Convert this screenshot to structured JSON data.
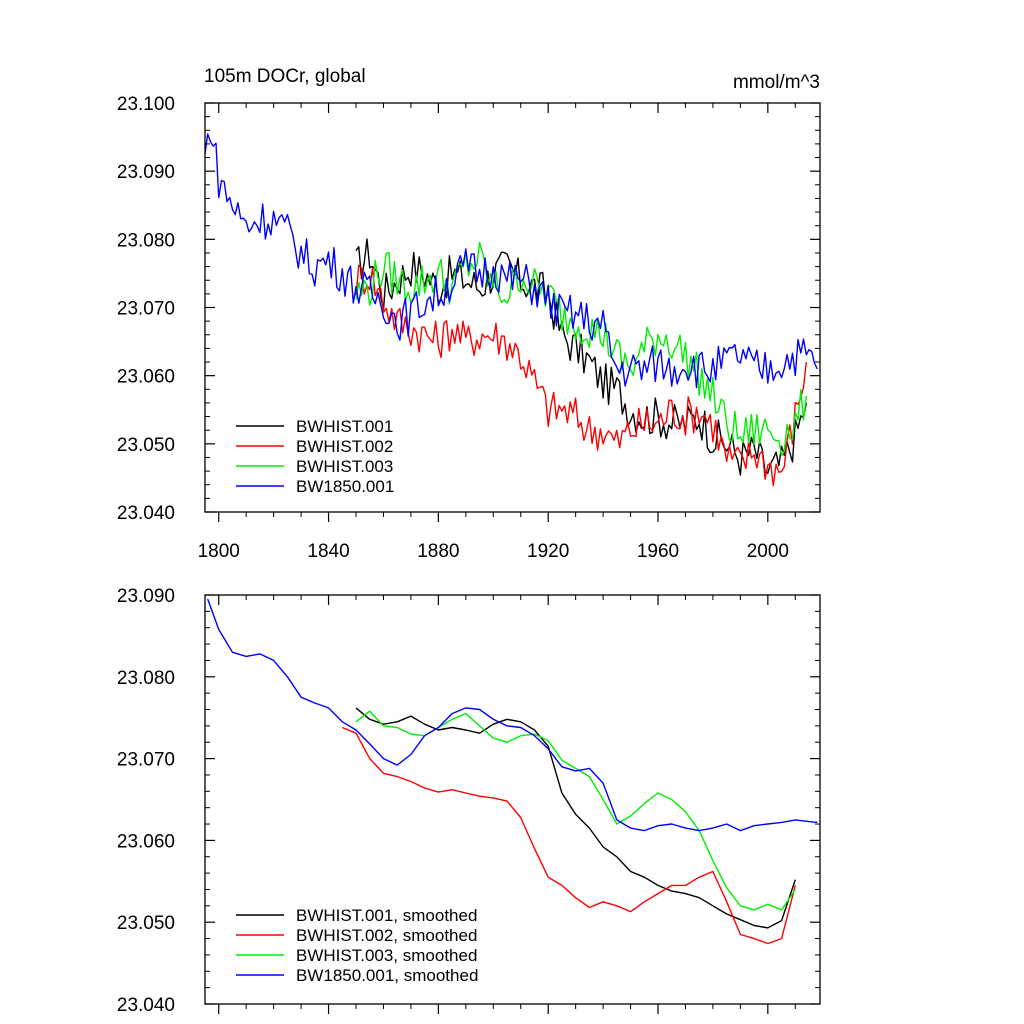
{
  "chart_data": [
    {
      "type": "line",
      "title": "105m DOCr, global",
      "units": "mmol/m^3",
      "xlim": [
        1795,
        2019
      ],
      "ylim": [
        23.04,
        23.1
      ],
      "xticks": [
        1800,
        1840,
        1880,
        1920,
        1960,
        2000
      ],
      "xtick_labels": [
        "1800",
        "1840",
        "1880",
        "1920",
        "1960",
        "2000"
      ],
      "yticks": [
        23.04,
        23.05,
        23.06,
        23.07,
        23.08,
        23.09,
        23.1
      ],
      "ytick_labels": [
        "23.040",
        "23.050",
        "23.060",
        "23.070",
        "23.080",
        "23.090",
        "23.100"
      ],
      "legend_position": "bottom-left",
      "series": [
        {
          "name": "BWHIST.001",
          "color": "#000000",
          "x": [
            1850,
            1855,
            1860,
            1865,
            1870,
            1875,
            1880,
            1885,
            1890,
            1895,
            1900,
            1905,
            1910,
            1915,
            1920,
            1925,
            1930,
            1935,
            1940,
            1945,
            1950,
            1955,
            1960,
            1965,
            1970,
            1975,
            1980,
            1985,
            1990,
            1995,
            2000,
            2005,
            2010,
            2014
          ],
          "y": [
            23.076,
            23.078,
            23.072,
            23.074,
            23.076,
            23.075,
            23.073,
            23.075,
            23.074,
            23.073,
            23.075,
            23.076,
            23.074,
            23.073,
            23.072,
            23.066,
            23.064,
            23.062,
            23.059,
            23.058,
            23.055,
            23.054,
            23.054,
            23.053,
            23.053,
            23.054,
            23.051,
            23.05,
            23.048,
            23.049,
            23.046,
            23.047,
            23.051,
            23.056
          ]
        },
        {
          "name": "BWHIST.002",
          "color": "#ff0000",
          "x": [
            1850,
            1855,
            1860,
            1865,
            1870,
            1875,
            1880,
            1885,
            1890,
            1895,
            1900,
            1905,
            1910,
            1915,
            1920,
            1925,
            1930,
            1935,
            1940,
            1945,
            1950,
            1955,
            1960,
            1965,
            1970,
            1975,
            1980,
            1985,
            1990,
            1995,
            2000,
            2005,
            2010,
            2014
          ],
          "y": [
            23.074,
            23.075,
            23.071,
            23.068,
            23.067,
            23.066,
            23.065,
            23.067,
            23.065,
            23.066,
            23.066,
            23.065,
            23.063,
            23.059,
            23.055,
            23.055,
            23.054,
            23.052,
            23.052,
            23.05,
            23.052,
            23.053,
            23.053,
            23.055,
            23.054,
            23.055,
            23.053,
            23.048,
            23.047,
            23.049,
            23.047,
            23.046,
            23.054,
            23.062
          ]
        },
        {
          "name": "BWHIST.003",
          "color": "#00ee00",
          "x": [
            1850,
            1855,
            1860,
            1865,
            1870,
            1875,
            1880,
            1885,
            1890,
            1895,
            1900,
            1905,
            1910,
            1915,
            1920,
            1925,
            1930,
            1935,
            1940,
            1945,
            1950,
            1955,
            1960,
            1965,
            1970,
            1975,
            1980,
            1985,
            1990,
            1995,
            2000,
            2005,
            2010,
            2014
          ],
          "y": [
            23.072,
            23.073,
            23.076,
            23.074,
            23.073,
            23.074,
            23.075,
            23.073,
            23.076,
            23.077,
            23.073,
            23.072,
            23.075,
            23.073,
            23.072,
            23.069,
            23.068,
            23.067,
            23.066,
            23.063,
            23.061,
            23.064,
            23.066,
            23.065,
            23.063,
            23.06,
            23.057,
            23.053,
            23.051,
            23.052,
            23.052,
            23.051,
            23.053,
            23.057
          ]
        },
        {
          "name": "BW1850.001",
          "color": "#0000ff",
          "x": [
            1795,
            1797,
            1800,
            1805,
            1810,
            1815,
            1820,
            1825,
            1830,
            1835,
            1840,
            1845,
            1850,
            1855,
            1860,
            1865,
            1870,
            1875,
            1880,
            1885,
            1890,
            1895,
            1900,
            1905,
            1910,
            1915,
            1920,
            1925,
            1930,
            1935,
            1940,
            1945,
            1950,
            1955,
            1960,
            1965,
            1970,
            1975,
            1980,
            1985,
            1990,
            1995,
            2000,
            2005,
            2010,
            2015,
            2018
          ],
          "y": [
            23.092,
            23.097,
            23.089,
            23.085,
            23.082,
            23.083,
            23.083,
            23.081,
            23.078,
            23.076,
            23.077,
            23.075,
            23.073,
            23.072,
            23.071,
            23.068,
            23.069,
            23.071,
            23.072,
            23.074,
            23.076,
            23.075,
            23.076,
            23.074,
            23.074,
            23.073,
            23.071,
            23.069,
            23.069,
            23.068,
            23.067,
            23.061,
            23.061,
            23.061,
            23.062,
            23.061,
            23.062,
            23.061,
            23.061,
            23.062,
            23.063,
            23.061,
            23.061,
            23.062,
            23.063,
            23.063,
            23.061
          ]
        }
      ]
    },
    {
      "type": "line",
      "title": "",
      "xlim": [
        1795,
        2019
      ],
      "ylim": [
        23.04,
        23.09
      ],
      "xticks": [
        1800,
        1840,
        1880,
        1920,
        1960,
        2000
      ],
      "yticks": [
        23.04,
        23.05,
        23.06,
        23.07,
        23.08,
        23.09
      ],
      "ytick_labels": [
        "23.040",
        "23.050",
        "23.060",
        "23.070",
        "23.080",
        "23.090"
      ],
      "legend_position": "bottom-left",
      "series": [
        {
          "name": "BWHIST.001, smoothed",
          "color": "#000000",
          "x": [
            1850,
            1855,
            1860,
            1865,
            1870,
            1875,
            1880,
            1885,
            1890,
            1895,
            1900,
            1905,
            1910,
            1915,
            1920,
            1925,
            1930,
            1935,
            1940,
            1945,
            1950,
            1955,
            1960,
            1965,
            1970,
            1975,
            1980,
            1985,
            1990,
            1995,
            2000,
            2005,
            2010
          ],
          "y": [
            23.0762,
            23.0748,
            23.0742,
            23.0745,
            23.0752,
            23.0742,
            23.0735,
            23.0738,
            23.0735,
            23.0731,
            23.0742,
            23.0748,
            23.0745,
            23.0735,
            23.0715,
            23.0658,
            23.0632,
            23.0615,
            23.0592,
            23.058,
            23.0562,
            23.0555,
            23.0545,
            23.0538,
            23.0535,
            23.053,
            23.052,
            23.051,
            23.0503,
            23.0496,
            23.0493,
            23.0502,
            23.0552
          ]
        },
        {
          "name": "BWHIST.002, smoothed",
          "color": "#ff0000",
          "x": [
            1845,
            1850,
            1855,
            1860,
            1865,
            1870,
            1875,
            1880,
            1885,
            1890,
            1895,
            1900,
            1905,
            1910,
            1915,
            1920,
            1925,
            1930,
            1935,
            1940,
            1945,
            1950,
            1955,
            1960,
            1965,
            1970,
            1975,
            1980,
            1985,
            1990,
            1995,
            2000,
            2005,
            2010
          ],
          "y": [
            23.0738,
            23.0731,
            23.07,
            23.0682,
            23.0678,
            23.0672,
            23.0664,
            23.0659,
            23.0662,
            23.0658,
            23.0654,
            23.0652,
            23.0648,
            23.0628,
            23.059,
            23.0555,
            23.0545,
            23.053,
            23.0518,
            23.0525,
            23.052,
            23.0513,
            23.0525,
            23.0535,
            23.0545,
            23.0545,
            23.0555,
            23.0562,
            23.0525,
            23.0485,
            23.048,
            23.0474,
            23.048,
            23.0545
          ]
        },
        {
          "name": "BWHIST.003, smoothed",
          "color": "#00ee00",
          "x": [
            1850,
            1855,
            1860,
            1865,
            1870,
            1875,
            1880,
            1885,
            1890,
            1895,
            1900,
            1905,
            1910,
            1915,
            1920,
            1925,
            1930,
            1935,
            1940,
            1945,
            1950,
            1955,
            1960,
            1965,
            1970,
            1975,
            1980,
            1985,
            1990,
            1995,
            2000,
            2005,
            2010
          ],
          "y": [
            23.0745,
            23.0758,
            23.074,
            23.0738,
            23.073,
            23.0728,
            23.0738,
            23.0748,
            23.0755,
            23.074,
            23.0725,
            23.072,
            23.0728,
            23.073,
            23.0722,
            23.0698,
            23.0688,
            23.0678,
            23.065,
            23.062,
            23.063,
            23.0645,
            23.0658,
            23.065,
            23.0635,
            23.0612,
            23.0575,
            23.0542,
            23.052,
            23.0515,
            23.0522,
            23.0515,
            23.054
          ]
        },
        {
          "name": "BW1850.001, smoothed",
          "color": "#0000ff",
          "x": [
            1796,
            1800,
            1805,
            1810,
            1815,
            1820,
            1825,
            1830,
            1835,
            1840,
            1845,
            1850,
            1855,
            1860,
            1865,
            1870,
            1875,
            1880,
            1885,
            1890,
            1895,
            1900,
            1905,
            1910,
            1915,
            1920,
            1925,
            1930,
            1935,
            1940,
            1945,
            1950,
            1955,
            1960,
            1965,
            1970,
            1975,
            1980,
            1985,
            1990,
            1995,
            2000,
            2005,
            2010,
            2015,
            2018
          ],
          "y": [
            23.0895,
            23.0858,
            23.083,
            23.0825,
            23.0828,
            23.082,
            23.08,
            23.0775,
            23.0768,
            23.0762,
            23.0745,
            23.0735,
            23.0718,
            23.07,
            23.0692,
            23.0705,
            23.0728,
            23.0738,
            23.0755,
            23.0762,
            23.076,
            23.0748,
            23.074,
            23.0738,
            23.0728,
            23.0712,
            23.069,
            23.0685,
            23.0688,
            23.067,
            23.0625,
            23.0615,
            23.0612,
            23.0618,
            23.062,
            23.0615,
            23.0612,
            23.0615,
            23.062,
            23.0612,
            23.0618,
            23.062,
            23.0622,
            23.0625,
            23.0623,
            23.0622
          ]
        }
      ]
    }
  ]
}
